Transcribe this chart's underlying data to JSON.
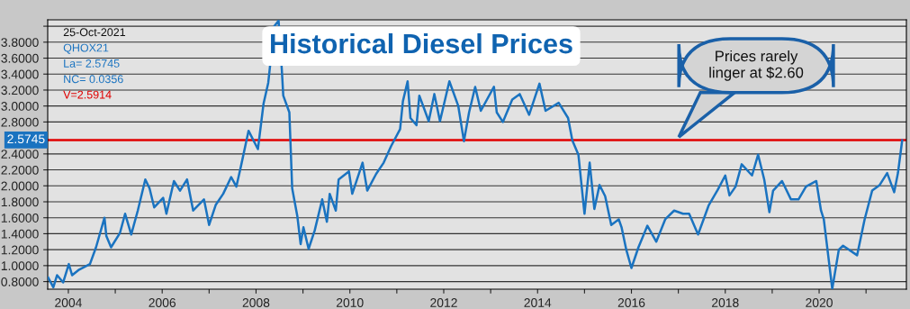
{
  "chart_data": {
    "type": "line",
    "title": "Historical Diesel Prices",
    "x": [
      2003.57,
      2003.68,
      2003.76,
      2003.89,
      2004.01,
      2004.08,
      2004.23,
      2004.46,
      2004.59,
      2004.77,
      2004.81,
      2004.91,
      2005.1,
      2005.21,
      2005.34,
      2005.48,
      2005.64,
      2005.73,
      2005.83,
      2006.02,
      2006.09,
      2006.25,
      2006.38,
      2006.53,
      2006.66,
      2006.89,
      2007.0,
      2007.14,
      2007.3,
      2007.47,
      2007.58,
      2007.68,
      2007.84,
      2008.04,
      2008.16,
      2008.26,
      2008.39,
      2008.48,
      2008.55,
      2008.58,
      2008.71,
      2008.77,
      2008.88,
      2008.95,
      2009.01,
      2009.12,
      2009.25,
      2009.41,
      2009.51,
      2009.57,
      2009.7,
      2009.76,
      2009.98,
      2010.05,
      2010.27,
      2010.37,
      2010.56,
      2010.72,
      2010.88,
      2011.07,
      2011.13,
      2011.23,
      2011.29,
      2011.42,
      2011.48,
      2011.68,
      2011.8,
      2011.92,
      2012.12,
      2012.31,
      2012.43,
      2012.54,
      2012.67,
      2012.79,
      2013.07,
      2013.13,
      2013.26,
      2013.46,
      2013.62,
      2013.82,
      2014.04,
      2014.17,
      2014.45,
      2014.65,
      2014.74,
      2014.87,
      2015.0,
      2015.11,
      2015.21,
      2015.32,
      2015.44,
      2015.57,
      2015.73,
      2015.79,
      2015.89,
      2016.0,
      2016.15,
      2016.34,
      2016.53,
      2016.72,
      2016.91,
      2017.1,
      2017.23,
      2017.42,
      2017.65,
      2017.84,
      2018.0,
      2018.09,
      2018.22,
      2018.35,
      2018.57,
      2018.7,
      2018.83,
      2018.94,
      2019.02,
      2019.21,
      2019.4,
      2019.56,
      2019.72,
      2019.94,
      2020.04,
      2020.1,
      2020.28,
      2020.42,
      2020.51,
      2020.81,
      2020.97,
      2021.13,
      2021.29,
      2021.45,
      2021.6,
      2021.68,
      2021.77
    ],
    "series": [
      {
        "color": "#1a73c0",
        "values": [
          0.85,
          0.73,
          0.88,
          0.79,
          1.02,
          0.88,
          0.95,
          1.02,
          1.23,
          1.6,
          1.37,
          1.23,
          1.41,
          1.65,
          1.39,
          1.69,
          2.08,
          1.97,
          1.73,
          1.85,
          1.65,
          2.06,
          1.94,
          2.08,
          1.69,
          1.83,
          1.51,
          1.76,
          1.9,
          2.11,
          1.99,
          2.25,
          2.69,
          2.46,
          3.03,
          3.29,
          4.0,
          4.07,
          3.45,
          3.13,
          2.92,
          1.97,
          1.62,
          1.27,
          1.48,
          1.21,
          1.44,
          1.83,
          1.55,
          1.9,
          1.69,
          2.08,
          2.18,
          1.9,
          2.29,
          1.94,
          2.15,
          2.29,
          2.5,
          2.71,
          3.06,
          3.31,
          2.85,
          2.76,
          3.13,
          2.81,
          3.15,
          2.81,
          3.31,
          3.0,
          2.56,
          2.92,
          3.24,
          2.94,
          3.24,
          2.92,
          2.8,
          3.08,
          3.15,
          2.89,
          3.28,
          2.94,
          3.04,
          2.85,
          2.57,
          2.39,
          1.65,
          2.29,
          1.71,
          2.01,
          1.87,
          1.51,
          1.58,
          1.48,
          1.2,
          0.97,
          1.23,
          1.5,
          1.3,
          1.58,
          1.69,
          1.65,
          1.65,
          1.39,
          1.76,
          1.95,
          2.13,
          1.88,
          1.99,
          2.27,
          2.13,
          2.39,
          2.08,
          1.67,
          1.94,
          2.06,
          1.83,
          1.83,
          1.99,
          2.06,
          1.69,
          1.58,
          0.71,
          1.2,
          1.25,
          1.13,
          1.58,
          1.94,
          2.01,
          2.16,
          1.92,
          2.16,
          2.57
        ]
      }
    ],
    "xlim": [
      2003.56,
      2021.86
    ],
    "xticks": [
      2004,
      {
        "value": 2005,
        "label": null
      },
      2006,
      {
        "value": 2007,
        "label": null
      },
      2008,
      {
        "value": 2009,
        "label": null
      },
      2010,
      {
        "value": 2011,
        "label": null
      },
      2012,
      {
        "value": 2013,
        "label": null
      },
      2014,
      {
        "value": 2015,
        "label": null
      },
      2016,
      {
        "value": 2017,
        "label": null
      },
      2018,
      {
        "value": 2019,
        "label": null
      },
      2020,
      {
        "value": 2021,
        "label": null
      }
    ],
    "ylim": [
      0.705,
      4.08
    ],
    "yticks": [
      {
        "value": 0.8,
        "label": "0.8000"
      },
      {
        "value": 1.0,
        "label": "1.0000"
      },
      {
        "value": 1.2,
        "label": "1.2000"
      },
      {
        "value": 1.4,
        "label": "1.4000"
      },
      {
        "value": 1.6,
        "label": "1.6000"
      },
      {
        "value": 1.8,
        "label": "1.8000"
      },
      {
        "value": 2.0,
        "label": "2.0000"
      },
      {
        "value": 2.2,
        "label": "2.2000"
      },
      {
        "value": 2.4,
        "label": "2.4000"
      },
      {
        "value": 2.8,
        "label": "2.8000"
      },
      {
        "value": 3.0,
        "label": "3.0000"
      },
      {
        "value": 3.2,
        "label": "3.2000"
      },
      {
        "value": 3.4,
        "label": "3.4000"
      },
      {
        "value": 3.6,
        "label": "3.6000"
      },
      {
        "value": 3.8,
        "label": "3.8000"
      },
      {
        "value": 4.0,
        "label": null
      }
    ],
    "ref_lines": [
      {
        "axis": "y",
        "value": 2.5745,
        "label": "2.5745",
        "color": "#e00000"
      }
    ],
    "annotations": [
      "25-Oct-2021",
      "QHOX21",
      "La= 2.5745",
      "NC= 0.0356",
      "V=2.5914",
      "Prices rarely\nlinger at $2.60"
    ],
    "grid": "y",
    "legend": false,
    "marker": "none",
    "line_style": "solid"
  }
}
